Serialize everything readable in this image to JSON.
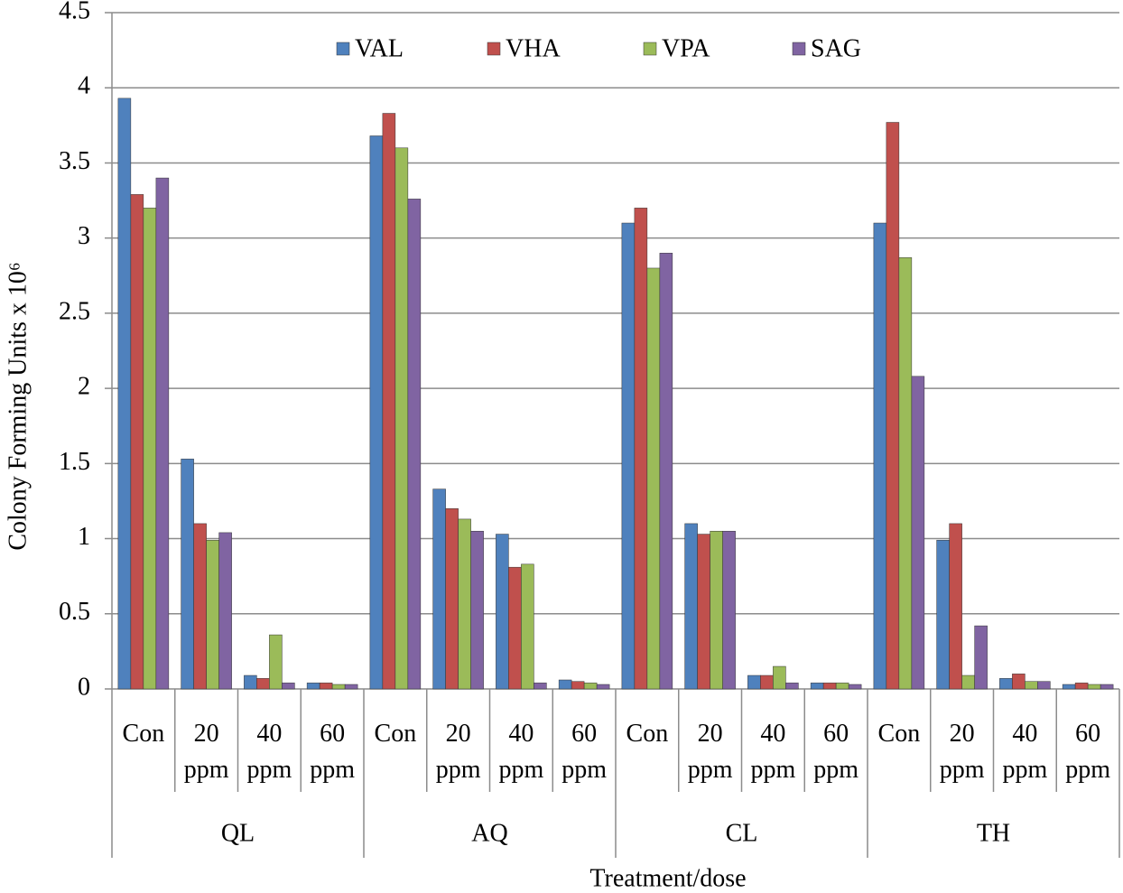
{
  "chart_data": {
    "type": "bar",
    "y_label": "Colony Forming Units x 10⁶",
    "x_label": "Treatment/dose",
    "categories": [
      "Con",
      "20 ppm",
      "40 ppm",
      "60 ppm",
      "Con",
      "20 ppm",
      "40 ppm",
      "60 ppm",
      "Con",
      "20 ppm",
      "40 ppm",
      "60 ppm",
      "Con",
      "20 ppm",
      "40 ppm",
      "60 ppm"
    ],
    "category_groups": [
      "QL",
      "AQ",
      "CL",
      "TH"
    ],
    "series": [
      {
        "name": "VAL",
        "color": "#4f81bd",
        "values": [
          3.93,
          1.53,
          0.09,
          0.04,
          3.68,
          1.33,
          1.03,
          0.06,
          3.1,
          1.1,
          0.09,
          0.04,
          3.1,
          0.99,
          0.07,
          0.03
        ]
      },
      {
        "name": "VHA",
        "color": "#c0504d",
        "values": [
          3.29,
          1.1,
          0.07,
          0.04,
          3.83,
          1.2,
          0.81,
          0.05,
          3.2,
          1.03,
          0.09,
          0.04,
          3.77,
          1.1,
          0.1,
          0.04
        ]
      },
      {
        "name": "VPA",
        "color": "#9bbb59",
        "values": [
          3.2,
          0.99,
          0.36,
          0.03,
          3.6,
          1.13,
          0.83,
          0.04,
          2.8,
          1.05,
          0.15,
          0.04,
          2.87,
          0.09,
          0.05,
          0.03
        ]
      },
      {
        "name": "SAG",
        "color": "#8064a2",
        "values": [
          3.4,
          1.04,
          0.04,
          0.03,
          3.26,
          1.05,
          0.04,
          0.03,
          2.9,
          1.05,
          0.04,
          0.03,
          2.08,
          0.42,
          0.05,
          0.03
        ]
      }
    ],
    "ylim": [
      0,
      4.5
    ],
    "yticks": [
      0,
      0.5,
      1,
      1.5,
      2,
      2.5,
      3,
      3.5,
      4,
      4.5
    ],
    "grid": true,
    "legend": "top"
  }
}
